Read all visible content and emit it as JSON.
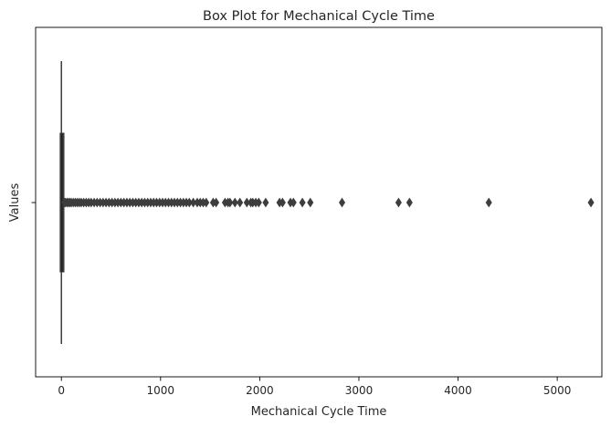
{
  "chart_data": {
    "type": "box",
    "orientation": "horizontal",
    "title": "Box Plot for Mechanical Cycle Time",
    "xlabel": "Mechanical Cycle Time",
    "ylabel": "Values",
    "xlim": [
      -260,
      5450
    ],
    "xticks": [
      0,
      1000,
      2000,
      3000,
      4000,
      5000
    ],
    "xtick_labels": [
      "0",
      "1000",
      "2000",
      "3000",
      "4000",
      "5000"
    ],
    "yticks": [
      ""
    ],
    "grid": false,
    "legend": "none",
    "colors": {
      "box": "#3d3d3d",
      "outlier": "#3d3d3d",
      "spine": "#000000"
    },
    "box": {
      "q1": 1,
      "median": 5,
      "q3": 12,
      "whisker_low": 0,
      "whisker_high": 29
    },
    "outliers": [
      30,
      40,
      55,
      70,
      85,
      100,
      120,
      140,
      160,
      180,
      200,
      225,
      250,
      275,
      300,
      330,
      360,
      390,
      420,
      450,
      480,
      510,
      540,
      570,
      600,
      630,
      660,
      690,
      720,
      750,
      780,
      810,
      840,
      870,
      900,
      930,
      960,
      990,
      1020,
      1050,
      1080,
      1110,
      1140,
      1170,
      1200,
      1230,
      1260,
      1290,
      1330,
      1370,
      1400,
      1430,
      1460,
      1530,
      1560,
      1650,
      1680,
      1700,
      1750,
      1800,
      1870,
      1910,
      1930,
      1960,
      1990,
      2060,
      2200,
      2230,
      2310,
      2340,
      2430,
      2510,
      2830,
      3400,
      3510,
      4310,
      5340
    ]
  }
}
